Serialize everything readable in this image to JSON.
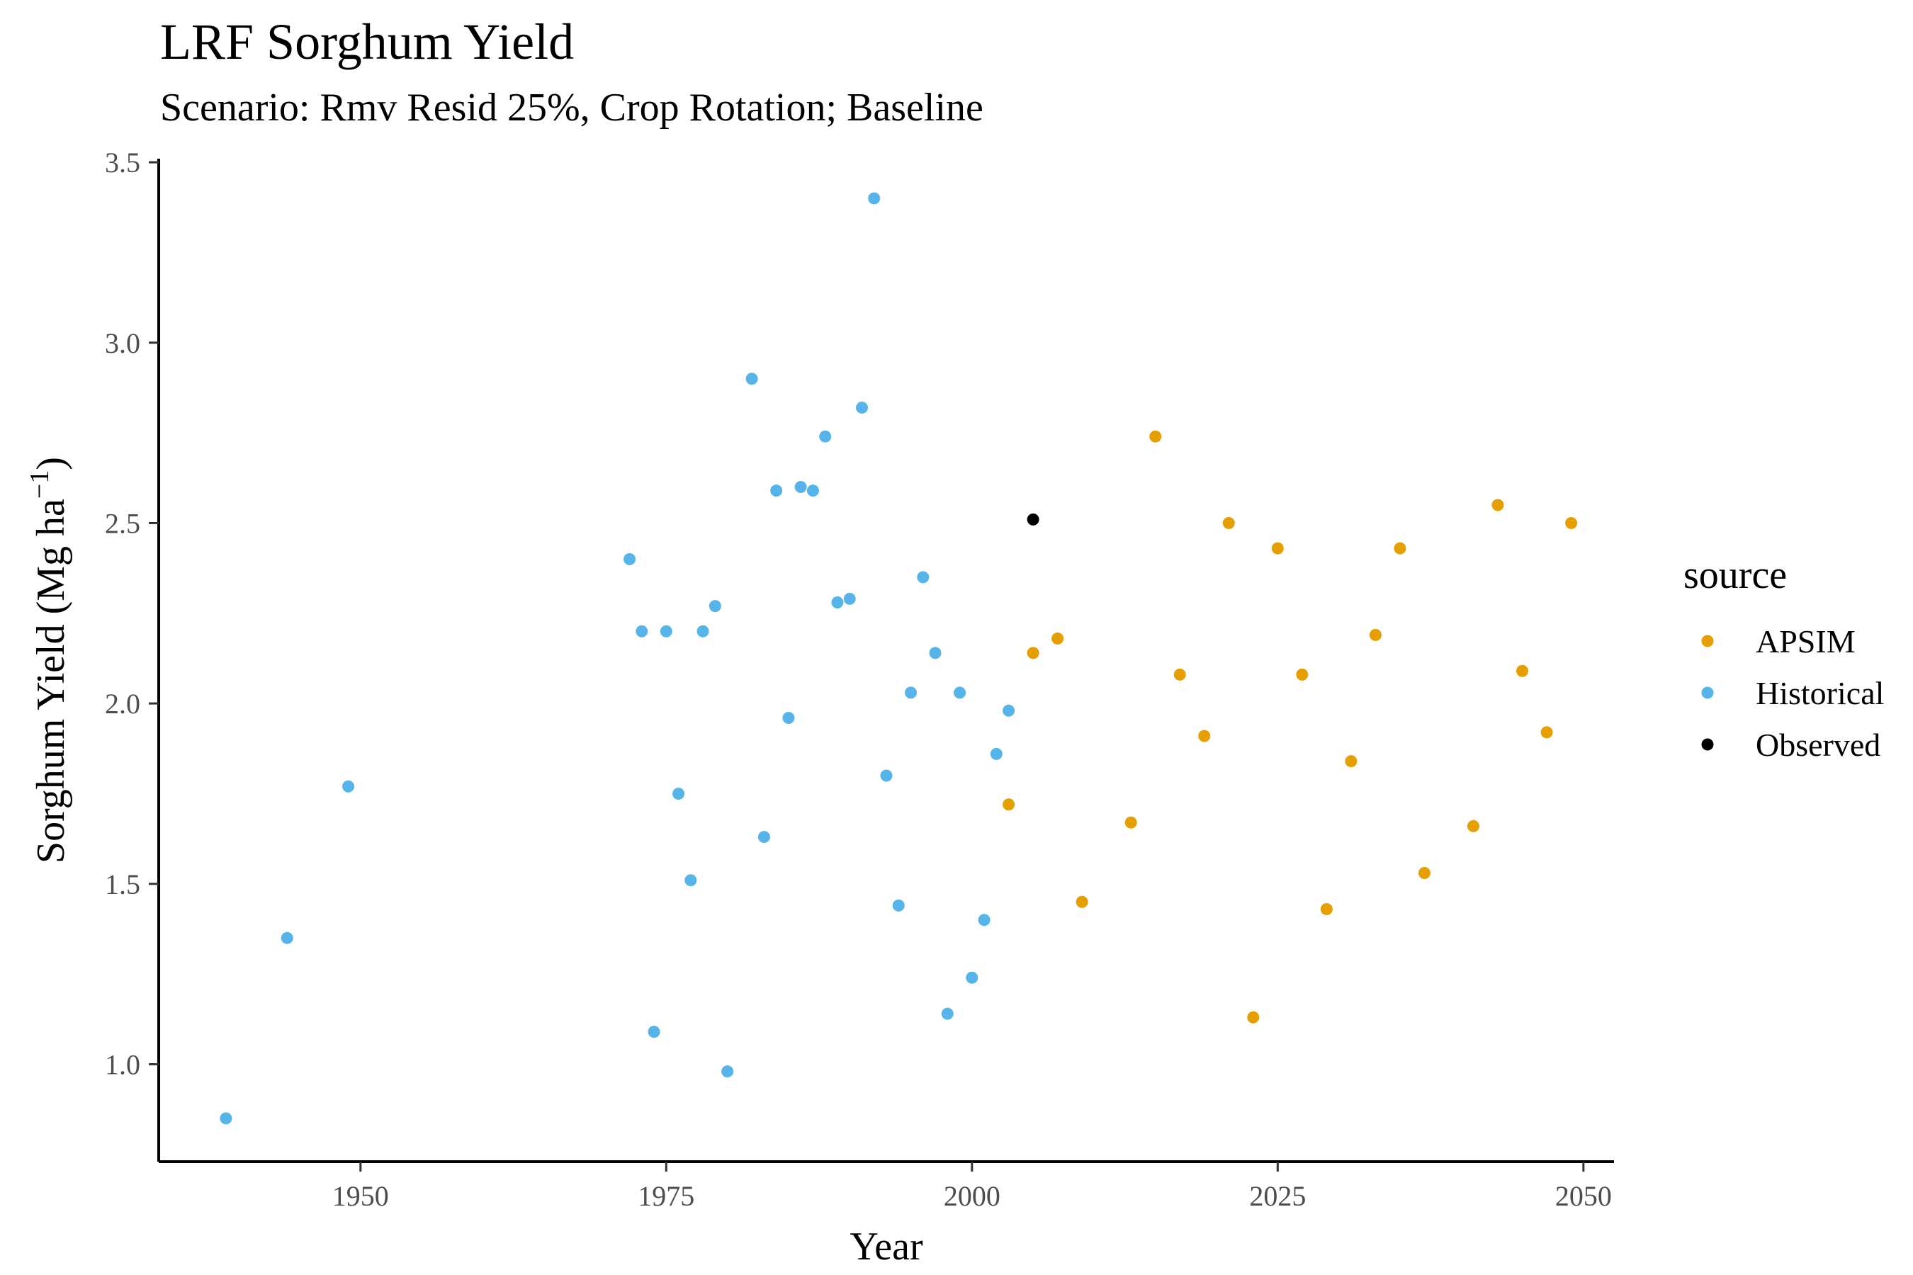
{
  "chart_data": {
    "type": "scatter",
    "title": "LRF Sorghum Yield",
    "subtitle": "Scenario: Rmv Resid 25%, Crop Rotation; Baseline",
    "xlabel": "Year",
    "ylabel": "Sorghum Yield (Mg ha",
    "ylabel_superscript": "−1",
    "ylabel_close": ")",
    "xlim": [
      1933.5,
      2052.5
    ],
    "ylim": [
      0.73,
      3.51
    ],
    "x_ticks": [
      1950,
      1975,
      2000,
      2025,
      2050
    ],
    "y_ticks": [
      1.0,
      1.5,
      2.0,
      2.5,
      3.0,
      3.5
    ],
    "y_tick_labels": [
      "1.0",
      "1.5",
      "2.0",
      "2.5",
      "3.0",
      "3.5"
    ],
    "grid": false,
    "legend": {
      "title": "source",
      "placement": "right",
      "entries": [
        "APSIM",
        "Historical",
        "Observed"
      ]
    },
    "series": [
      {
        "name": "APSIM",
        "color": "#E69F00",
        "points": [
          [
            2003,
            1.72
          ],
          [
            2005,
            2.14
          ],
          [
            2007,
            2.18
          ],
          [
            2009,
            1.45
          ],
          [
            2013,
            1.67
          ],
          [
            2015,
            2.74
          ],
          [
            2017,
            2.08
          ],
          [
            2019,
            1.91
          ],
          [
            2021,
            2.5
          ],
          [
            2023,
            1.13
          ],
          [
            2025,
            2.43
          ],
          [
            2027,
            2.08
          ],
          [
            2029,
            1.43
          ],
          [
            2031,
            1.84
          ],
          [
            2033,
            2.19
          ],
          [
            2035,
            2.43
          ],
          [
            2037,
            1.53
          ],
          [
            2041,
            1.66
          ],
          [
            2043,
            2.55
          ],
          [
            2045,
            2.09
          ],
          [
            2047,
            1.92
          ],
          [
            2049,
            2.5
          ]
        ]
      },
      {
        "name": "Historical",
        "color": "#56B4E9",
        "points": [
          [
            1939,
            0.85
          ],
          [
            1944,
            1.35
          ],
          [
            1949,
            1.77
          ],
          [
            1972,
            2.4
          ],
          [
            1973,
            2.2
          ],
          [
            1974,
            1.09
          ],
          [
            1975,
            2.2
          ],
          [
            1976,
            1.75
          ],
          [
            1977,
            1.51
          ],
          [
            1978,
            2.2
          ],
          [
            1979,
            2.27
          ],
          [
            1980,
            0.98
          ],
          [
            1982,
            2.9
          ],
          [
            1983,
            1.63
          ],
          [
            1984,
            2.59
          ],
          [
            1985,
            1.96
          ],
          [
            1986,
            2.6
          ],
          [
            1987,
            2.59
          ],
          [
            1988,
            2.74
          ],
          [
            1989,
            2.28
          ],
          [
            1990,
            2.29
          ],
          [
            1991,
            2.82
          ],
          [
            1992,
            3.4
          ],
          [
            1993,
            1.8
          ],
          [
            1994,
            1.44
          ],
          [
            1995,
            2.03
          ],
          [
            1996,
            2.35
          ],
          [
            1997,
            2.14
          ],
          [
            1998,
            1.14
          ],
          [
            1999,
            2.03
          ],
          [
            2000,
            1.24
          ],
          [
            2001,
            1.4
          ],
          [
            2002,
            1.86
          ],
          [
            2003,
            1.98
          ]
        ]
      },
      {
        "name": "Observed",
        "color": "#000000",
        "points": [
          [
            2005,
            2.51
          ]
        ]
      }
    ]
  }
}
